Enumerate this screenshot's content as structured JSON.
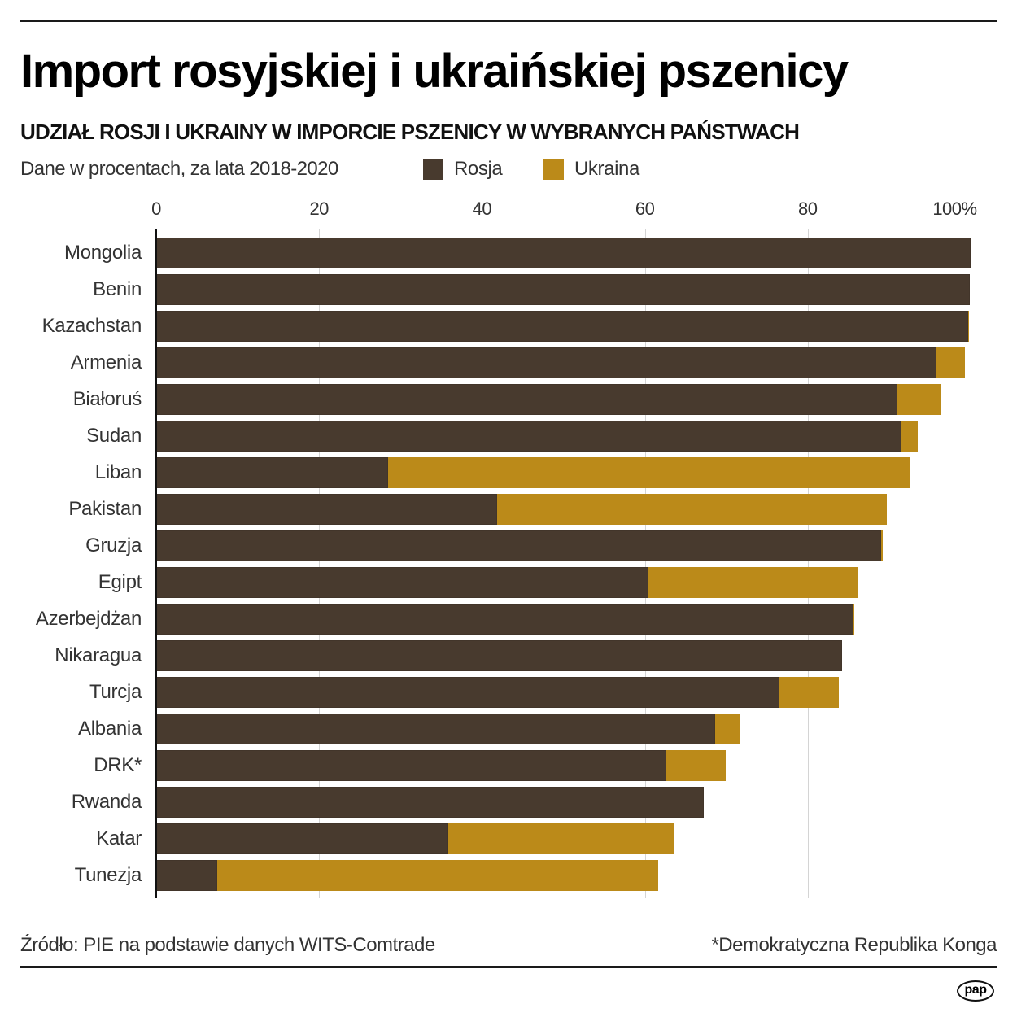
{
  "header": {
    "title": "Import rosyjskiej i ukraińskiej pszenicy",
    "subtitle": "UDZIAŁ ROSJI I UKRAINY W IMPORCIE PSZENICY W WYBRANYCH PAŃSTWACH",
    "note": "Dane w procentach, za lata 2018-2020"
  },
  "legend": [
    {
      "label": "Rosja",
      "color": "#483a2e"
    },
    {
      "label": "Ukraina",
      "color": "#bb8a19"
    }
  ],
  "axis": {
    "ticks": [
      "0",
      "20",
      "40",
      "60",
      "80",
      "100%"
    ],
    "tick_values": [
      0,
      20,
      40,
      60,
      80,
      100
    ]
  },
  "footer": {
    "source": "Źródło: PIE na podstawie danych WITS-Comtrade",
    "footnote": "*Demokratyczna Republika Konga",
    "logo": "pap"
  },
  "colors": {
    "rosja": "#483a2e",
    "ukraina": "#bb8a19",
    "grid": "#d4d4d4",
    "text": "#333333"
  },
  "chart_data": {
    "type": "bar",
    "orientation": "horizontal",
    "stacked": true,
    "title": "Import rosyjskiej i ukraińskiej pszenicy",
    "subtitle": "UDZIAŁ ROSJI I UKRAINY W IMPORCIE PSZENICY W WYBRANYCH PAŃSTWACH",
    "xlabel": "Dane w procentach, za lata 2018-2020",
    "ylabel": "",
    "xlim": [
      0,
      100
    ],
    "grid": true,
    "legend_position": "top",
    "categories": [
      "Mongolia",
      "Benin",
      "Kazachstan",
      "Armenia",
      "Białoruś",
      "Sudan",
      "Liban",
      "Pakistan",
      "Gruzja",
      "Egipt",
      "Azerbejdżan",
      "Nikaragua",
      "Turcja",
      "Albania",
      "DRK*",
      "Rwanda",
      "Katar",
      "Tunezja"
    ],
    "series": [
      {
        "name": "Rosja",
        "color": "#483a2e",
        "values": [
          100.0,
          99.9,
          99.7,
          95.8,
          91.0,
          91.5,
          28.5,
          41.9,
          89.0,
          60.4,
          85.6,
          84.2,
          76.5,
          68.6,
          62.6,
          67.2,
          35.9,
          7.5
        ]
      },
      {
        "name": "Ukraina",
        "color": "#bb8a19",
        "values": [
          0.0,
          0.0,
          0.1,
          3.5,
          5.3,
          2.0,
          64.1,
          47.8,
          0.2,
          25.7,
          0.1,
          0.0,
          7.3,
          3.1,
          7.3,
          0.0,
          27.6,
          54.1
        ]
      }
    ]
  }
}
